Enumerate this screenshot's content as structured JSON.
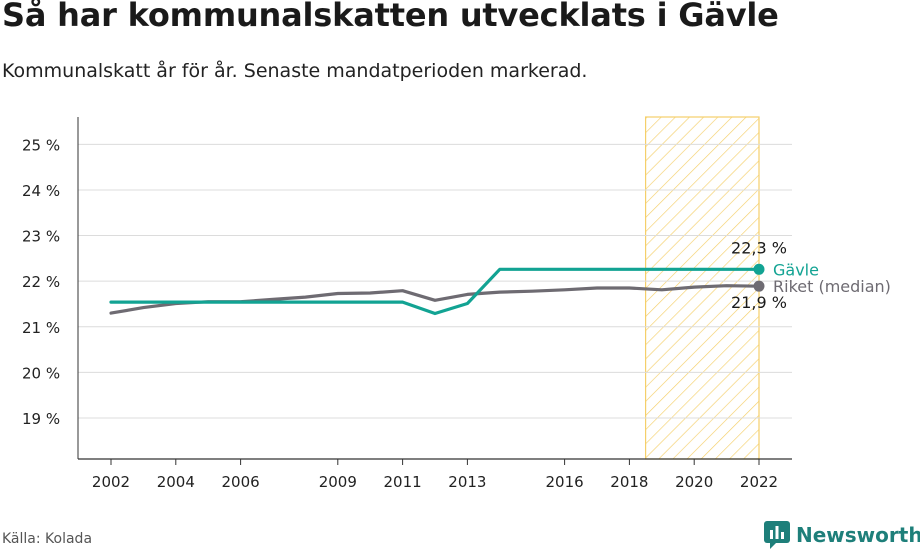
{
  "title": "Så har kommunalskatten utvecklats i Gävle",
  "subtitle": "Kommunalskatt år för år. Senaste mandatperioden markerad.",
  "source": "Källa: Kolada",
  "brand": {
    "name": "Newsworthy",
    "icon": "newsworthy-logo-icon",
    "color": "#1e7f7a"
  },
  "chart_data": {
    "type": "line",
    "x_ticks": [
      2002,
      2004,
      2006,
      2009,
      2011,
      2013,
      2016,
      2018,
      2020,
      2022
    ],
    "y_ticks": [
      19,
      20,
      21,
      22,
      23,
      24,
      25
    ],
    "y_tick_labels": [
      "19 %",
      "20 %",
      "21 %",
      "22 %",
      "23 %",
      "24 %",
      "25 %"
    ],
    "xlim": [
      2002,
      2022
    ],
    "ylim": [
      18.1,
      25.6
    ],
    "grid": "horizontal",
    "highlight_period": {
      "from": 2018.5,
      "to": 2022
    },
    "x": [
      2002,
      2003,
      2004,
      2005,
      2006,
      2007,
      2008,
      2009,
      2010,
      2011,
      2012,
      2013,
      2014,
      2015,
      2016,
      2017,
      2018,
      2019,
      2020,
      2021,
      2022
    ],
    "series": [
      {
        "name": "Gävle",
        "color": "#12a393",
        "values": [
          21.54,
          21.54,
          21.54,
          21.54,
          21.54,
          21.54,
          21.54,
          21.54,
          21.54,
          21.54,
          21.29,
          21.51,
          22.26,
          22.26,
          22.26,
          22.26,
          22.26,
          22.26,
          22.26,
          22.26,
          22.26
        ],
        "end_label": "22,3 %"
      },
      {
        "name": "Riket (median)",
        "color": "#6e6b72",
        "values": [
          21.3,
          21.42,
          21.51,
          21.55,
          21.55,
          21.6,
          21.65,
          21.73,
          21.74,
          21.79,
          21.58,
          21.71,
          21.76,
          21.78,
          21.81,
          21.85,
          21.85,
          21.81,
          21.87,
          21.9,
          21.89
        ],
        "end_label": "21,9 %"
      }
    ]
  }
}
